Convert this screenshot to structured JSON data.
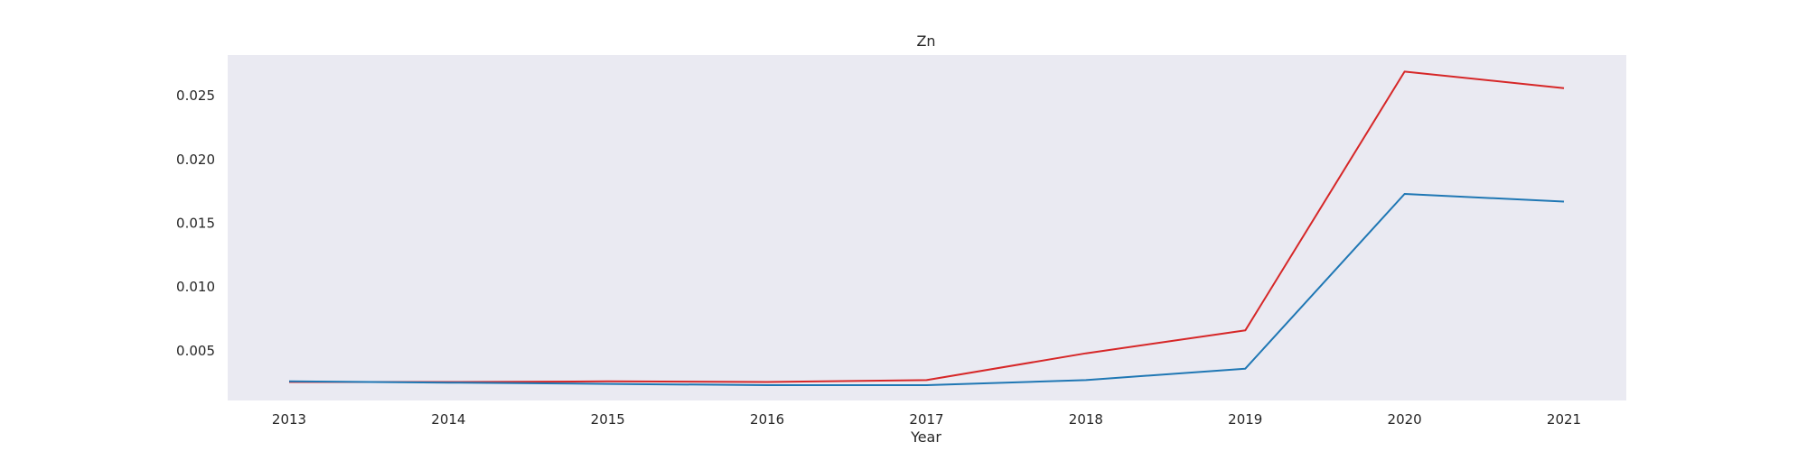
{
  "chart_data": {
    "type": "line",
    "title": "Zn",
    "xlabel": "Year",
    "ylabel": "",
    "x": [
      2013,
      2014,
      2015,
      2016,
      2017,
      2018,
      2019,
      2020,
      2021
    ],
    "x_tick_labels": [
      "2013",
      "2014",
      "2015",
      "2016",
      "2017",
      "2018",
      "2019",
      "2020",
      "2021"
    ],
    "ylim": [
      0.0011,
      0.0282
    ],
    "y_ticks": [
      0.005,
      0.01,
      0.015,
      0.02,
      0.025
    ],
    "y_tick_labels": [
      "0.005",
      "0.010",
      "0.015",
      "0.020",
      "0.025"
    ],
    "grid": false,
    "background_color": "#eaeaf2",
    "series": [
      {
        "color": "#d62728",
        "values": [
          0.00255,
          0.00255,
          0.0026,
          0.00255,
          0.0027,
          0.0048,
          0.0066,
          0.0269,
          0.0256
        ]
      },
      {
        "color": "#1f77b4",
        "values": [
          0.0026,
          0.0025,
          0.0024,
          0.0023,
          0.0023,
          0.0027,
          0.0036,
          0.0173,
          0.0167
        ]
      }
    ]
  }
}
